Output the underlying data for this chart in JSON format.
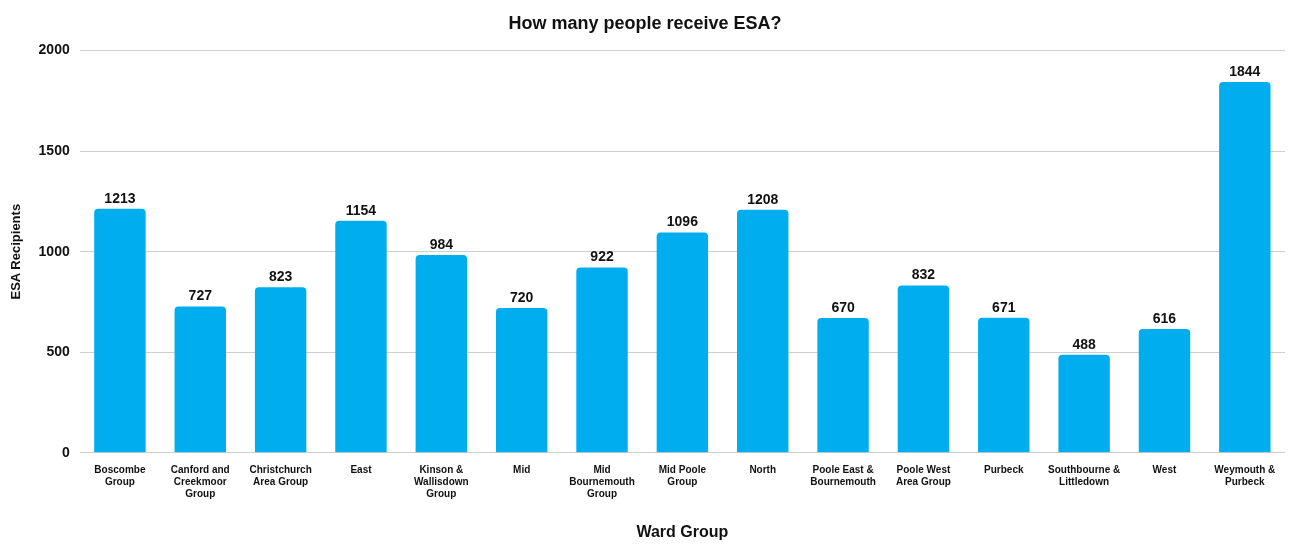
{
  "chart_data": {
    "type": "bar",
    "title": "How many people receive ESA?",
    "xlabel": "Ward Group",
    "ylabel": "ESA Recipients",
    "categories": [
      "Boscombe Group",
      "Canford and Creekmoor Group",
      "Christchurch Area Group",
      "East",
      "Kinson & Wallisdown Group",
      "Mid",
      "Mid Bournemouth Group",
      "Mid Poole Group",
      "North",
      "Poole East & Bournemouth",
      "Poole West Area Group",
      "Purbeck",
      "Southbourne & Littledown",
      "West",
      "Weymouth & Purbeck"
    ],
    "values": [
      1213,
      727,
      823,
      1154,
      984,
      720,
      922,
      1096,
      1208,
      670,
      832,
      671,
      488,
      616,
      1844
    ],
    "color": "#00aeef",
    "ylim": [
      0,
      2000
    ],
    "yticks": [
      0,
      500,
      1000,
      1500,
      2000
    ],
    "grid": "y",
    "data_labels": true,
    "legend": false
  }
}
